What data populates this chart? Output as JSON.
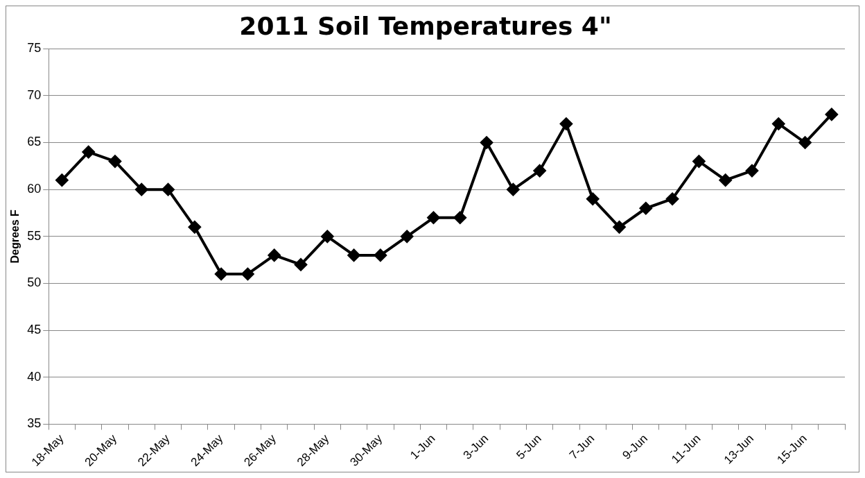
{
  "chart_data": {
    "type": "line",
    "title": "2011 Soil Temperatures 4\"",
    "ylabel": "Degrees F",
    "categories": [
      "18-May",
      null,
      "20-May",
      null,
      "22-May",
      null,
      "24-May",
      null,
      "26-May",
      null,
      "28-May",
      null,
      "30-May",
      null,
      "1-Jun",
      null,
      "3-Jun",
      null,
      "5-Jun",
      null,
      "7-Jun",
      null,
      "9-Jun",
      null,
      "11-Jun",
      null,
      "13-Jun",
      null,
      "15-Jun",
      null
    ],
    "series": [
      {
        "color": "#000000",
        "values": [
          61,
          64,
          63,
          60,
          60,
          56,
          51,
          51,
          53,
          52,
          55,
          53,
          53,
          55,
          57,
          57,
          65,
          60,
          62,
          67,
          59,
          56,
          58,
          59,
          63,
          61,
          62,
          67,
          65,
          68
        ]
      }
    ],
    "ylim": [
      35,
      75
    ],
    "yticks": [
      35,
      40,
      45,
      50,
      55,
      60,
      65,
      70,
      75
    ],
    "grid": "y",
    "legend": false,
    "marker": "diamond",
    "line_style": "solid"
  }
}
